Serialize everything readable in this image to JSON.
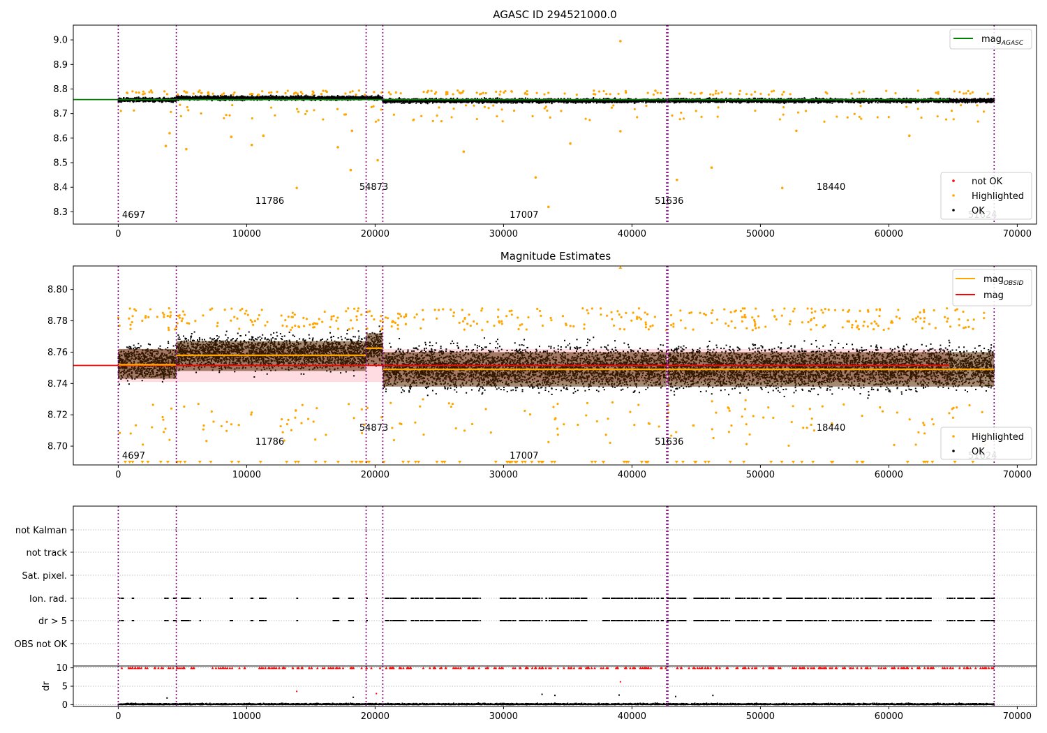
{
  "figure_title": "AGASC ID 294521000.0",
  "colors": {
    "ok": "#000000",
    "highlighted": "#ffa500",
    "not_ok": "#ff0000",
    "agasc_line": "#008000",
    "obsid_line": "#ffa500",
    "mag_line": "#ff0000",
    "obs_divider": "#800080",
    "mag_band": "#ffc0cb"
  },
  "observation_boundaries": [
    0,
    4520,
    19300,
    20600,
    42700,
    42800,
    68200
  ],
  "obsid_labels": [
    {
      "text": "4697",
      "x": 1200,
      "level": "low"
    },
    {
      "text": "11786",
      "x": 11800,
      "level": "mid"
    },
    {
      "text": "54873",
      "x": 19900,
      "level": "high"
    },
    {
      "text": "17007",
      "x": 31600,
      "level": "low"
    },
    {
      "text": "51636",
      "x": 42900,
      "level": "mid"
    },
    {
      "text": "18440",
      "x": 55500,
      "level": "high"
    },
    {
      "text": "51624",
      "x": 67300,
      "level": "low"
    }
  ],
  "chart_data": [
    {
      "type": "scatter",
      "title": "AGASC ID 294521000.0",
      "xlim": [
        -3500,
        71500
      ],
      "ylim": [
        8.25,
        9.06
      ],
      "xticks": [
        0,
        10000,
        20000,
        30000,
        40000,
        50000,
        60000,
        70000
      ],
      "yticks": [
        8.3,
        8.4,
        8.5,
        8.6,
        8.7,
        8.8,
        8.9,
        9.0
      ],
      "legend_lines": [
        {
          "name": "mag_AGASC",
          "main": "mag",
          "sub": "AGASC",
          "color": "#008000"
        }
      ],
      "legend_points": [
        {
          "name": "not OK",
          "color": "#ff0000"
        },
        {
          "name": "Highlighted",
          "color": "#ffa500"
        },
        {
          "name": "OK",
          "color": "#000000"
        }
      ],
      "mag_agasc": 8.757,
      "ok_band_center": 8.756,
      "ok_band_halfwidth": 0.013,
      "highlighted_outliers": [
        {
          "x": 39100,
          "y": 8.995
        },
        {
          "x": 33500,
          "y": 8.32
        },
        {
          "x": 13900,
          "y": 8.397
        },
        {
          "x": 18100,
          "y": 8.47
        },
        {
          "x": 32500,
          "y": 8.44
        },
        {
          "x": 43500,
          "y": 8.43
        },
        {
          "x": 46200,
          "y": 8.48
        },
        {
          "x": 51700,
          "y": 8.397
        },
        {
          "x": 3700,
          "y": 8.568
        },
        {
          "x": 5300,
          "y": 8.555
        },
        {
          "x": 10400,
          "y": 8.572
        },
        {
          "x": 17100,
          "y": 8.563
        },
        {
          "x": 20200,
          "y": 8.51
        },
        {
          "x": 26900,
          "y": 8.545
        },
        {
          "x": 35200,
          "y": 8.578
        },
        {
          "x": 61600,
          "y": 8.61
        },
        {
          "x": 11300,
          "y": 8.61
        },
        {
          "x": 8800,
          "y": 8.605
        },
        {
          "x": 4000,
          "y": 8.62
        },
        {
          "x": 18200,
          "y": 8.63
        },
        {
          "x": 52800,
          "y": 8.63
        },
        {
          "x": 39100,
          "y": 8.628
        }
      ]
    },
    {
      "type": "scatter",
      "title": "Magnitude Estimates",
      "xlim": [
        -3500,
        71500
      ],
      "ylim": [
        8.688,
        8.815
      ],
      "xticks": [
        0,
        10000,
        20000,
        30000,
        40000,
        50000,
        60000,
        70000
      ],
      "yticks": [
        8.7,
        8.72,
        8.74,
        8.76,
        8.78,
        8.8
      ],
      "legend_lines": [
        {
          "name": "mag_OBSID",
          "main": "mag",
          "sub": "OBSID",
          "color": "#ffa500"
        },
        {
          "name": "mag",
          "main": "mag",
          "sub": "",
          "color": "#ff0000"
        }
      ],
      "legend_points": [
        {
          "name": "Highlighted",
          "color": "#ffa500"
        },
        {
          "name": "OK",
          "color": "#000000"
        }
      ],
      "mag": 8.7515,
      "mag_band": [
        8.741,
        8.762
      ],
      "observations": [
        {
          "x0": 0,
          "x1": 4520,
          "mag_obsid": 8.752,
          "band": [
            8.743,
            8.762
          ],
          "scatter": [
            8.735,
            8.771
          ]
        },
        {
          "x0": 4520,
          "x1": 19300,
          "mag_obsid": 8.758,
          "band": [
            8.748,
            8.767
          ],
          "scatter": [
            8.742,
            8.777
          ]
        },
        {
          "x0": 19300,
          "x1": 20600,
          "mag_obsid": 8.7625,
          "band": [
            8.752,
            8.772
          ],
          "scatter": [
            8.746,
            8.78
          ]
        },
        {
          "x0": 20600,
          "x1": 42700,
          "mag_obsid": 8.749,
          "band": [
            8.738,
            8.76
          ],
          "scatter": [
            8.727,
            8.773
          ]
        },
        {
          "x0": 42800,
          "x1": 68200,
          "mag_obsid": 8.749,
          "band": [
            8.738,
            8.76
          ],
          "scatter": [
            8.727,
            8.773
          ]
        }
      ]
    },
    {
      "type": "scatter",
      "title": "",
      "xlim": [
        -3500,
        71500
      ],
      "categories": [
        "not Kalman",
        "not track",
        "Sat. pixel.",
        "Ion. rad.",
        "dr > 5",
        "OBS not OK"
      ],
      "flagged_rows": [
        "Ion. rad.",
        "dr > 5"
      ]
    },
    {
      "type": "scatter",
      "title": "",
      "ylabel": "dr",
      "xlim": [
        -3500,
        71500
      ],
      "ylim": [
        -0.5,
        10.5
      ],
      "xticks": [
        0,
        10000,
        20000,
        30000,
        40000,
        50000,
        60000,
        70000
      ],
      "yticks": [
        0,
        5,
        10
      ],
      "clip_value": 10,
      "dr_outliers": [
        {
          "x": 39100,
          "y": 6.2,
          "color": "#ff0000"
        },
        {
          "x": 13900,
          "y": 3.6,
          "color": "#ff0000"
        },
        {
          "x": 20100,
          "y": 3.0,
          "color": "#ff0000"
        },
        {
          "x": 33000,
          "y": 2.8,
          "color": "#000000"
        },
        {
          "x": 34000,
          "y": 2.5,
          "color": "#000000"
        },
        {
          "x": 39000,
          "y": 2.6,
          "color": "#000000"
        },
        {
          "x": 46300,
          "y": 2.5,
          "color": "#000000"
        },
        {
          "x": 43400,
          "y": 2.2,
          "color": "#000000"
        },
        {
          "x": 18300,
          "y": 2.0,
          "color": "#000000"
        },
        {
          "x": 3800,
          "y": 1.8,
          "color": "#000000"
        }
      ]
    }
  ]
}
